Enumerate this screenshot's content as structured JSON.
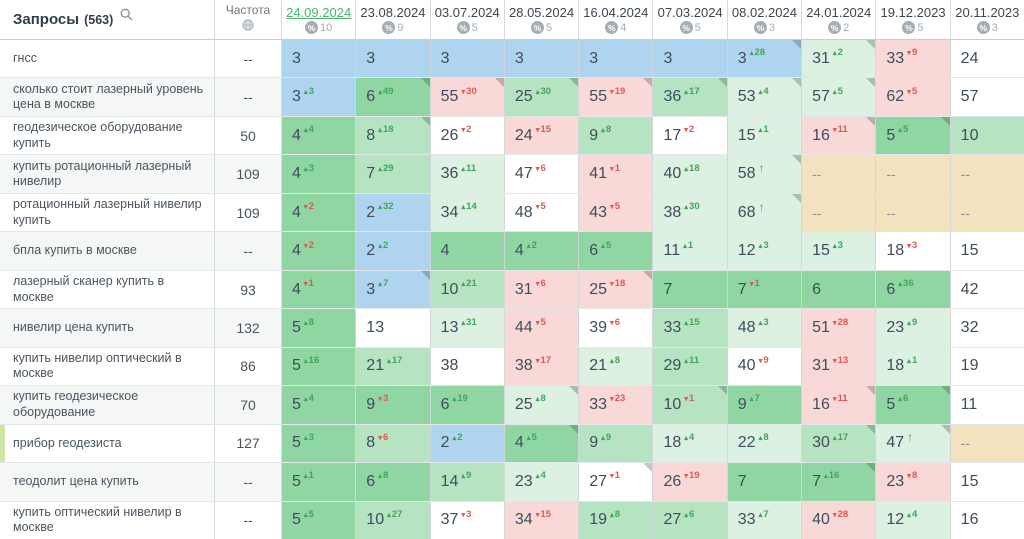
{
  "header": {
    "title": "Запросы",
    "count": "(563)",
    "frequency_label": "Частота",
    "dates": [
      {
        "label": "24.09.2024",
        "count": "10",
        "selected": true
      },
      {
        "label": "23.08.2024",
        "count": "9",
        "selected": false
      },
      {
        "label": "03.07.2024",
        "count": "5",
        "selected": false
      },
      {
        "label": "28.05.2024",
        "count": "5",
        "selected": false
      },
      {
        "label": "16.04.2024",
        "count": "4",
        "selected": false
      },
      {
        "label": "07.03.2024",
        "count": "5",
        "selected": false
      },
      {
        "label": "08.02.2024",
        "count": "3",
        "selected": false
      },
      {
        "label": "24.01.2024",
        "count": "2",
        "selected": false
      },
      {
        "label": "19.12.2023",
        "count": "5",
        "selected": false
      },
      {
        "label": "20.11.2023",
        "count": "3",
        "selected": false
      }
    ]
  },
  "palette": {
    "blue": "#afd4ef",
    "g1": "#8fd6a3",
    "g2": "#b6e4c2",
    "g3": "#dcf1e2",
    "pink": "#f9d9d7",
    "tan": "#f2e2bd",
    "white": "#ffffff",
    "up": "#3fa75c",
    "down": "#e2574f",
    "selected_date": "#4eb56d"
  },
  "rows": [
    {
      "query": "гнсс",
      "frequency": "--",
      "highlight": false,
      "cells": [
        {
          "v": "3",
          "bg": "blue"
        },
        {
          "v": "3",
          "bg": "blue"
        },
        {
          "v": "3",
          "bg": "blue"
        },
        {
          "v": "3",
          "bg": "blue"
        },
        {
          "v": "3",
          "bg": "blue"
        },
        {
          "v": "3",
          "bg": "blue"
        },
        {
          "v": "3",
          "d": "28",
          "dir": "up",
          "bg": "blue",
          "notch": true
        },
        {
          "v": "31",
          "d": "2",
          "dir": "up",
          "bg": "g3",
          "notch": true
        },
        {
          "v": "33",
          "d": "9",
          "dir": "down",
          "bg": "pink"
        },
        {
          "v": "24",
          "bg": "white"
        }
      ]
    },
    {
      "query": "сколько стоит лазерный уровень цена в москве",
      "frequency": "--",
      "highlight": false,
      "cells": [
        {
          "v": "3",
          "d": "3",
          "dir": "up",
          "bg": "blue"
        },
        {
          "v": "6",
          "d": "49",
          "dir": "up",
          "bg": "g1",
          "notch": true
        },
        {
          "v": "55",
          "d": "30",
          "dir": "down",
          "bg": "pink",
          "notch": true
        },
        {
          "v": "25",
          "d": "30",
          "dir": "up",
          "bg": "g2",
          "notch": true
        },
        {
          "v": "55",
          "d": "19",
          "dir": "down",
          "bg": "pink",
          "notch": true
        },
        {
          "v": "36",
          "d": "17",
          "dir": "up",
          "bg": "g2",
          "notch": true
        },
        {
          "v": "53",
          "d": "4",
          "dir": "up",
          "bg": "g3",
          "notch": true
        },
        {
          "v": "57",
          "d": "5",
          "dir": "up",
          "bg": "g3",
          "notch": true
        },
        {
          "v": "62",
          "d": "5",
          "dir": "down",
          "bg": "pink"
        },
        {
          "v": "57",
          "bg": "white"
        }
      ]
    },
    {
      "query": "геодезическое оборудование купить",
      "frequency": "50",
      "highlight": false,
      "cells": [
        {
          "v": "4",
          "d": "4",
          "dir": "up",
          "bg": "g1"
        },
        {
          "v": "8",
          "d": "18",
          "dir": "up",
          "bg": "g2",
          "notch": true
        },
        {
          "v": "26",
          "d": "2",
          "dir": "down",
          "bg": "white"
        },
        {
          "v": "24",
          "d": "15",
          "dir": "down",
          "bg": "pink"
        },
        {
          "v": "9",
          "d": "8",
          "dir": "up",
          "bg": "g2"
        },
        {
          "v": "17",
          "d": "2",
          "dir": "down",
          "bg": "white"
        },
        {
          "v": "15",
          "d": "1",
          "dir": "up",
          "bg": "g3"
        },
        {
          "v": "16",
          "d": "11",
          "dir": "down",
          "bg": "pink",
          "notch": true
        },
        {
          "v": "5",
          "d": "5",
          "dir": "up",
          "bg": "g1",
          "notch": true
        },
        {
          "v": "10",
          "bg": "g2"
        }
      ]
    },
    {
      "query": "купить ротационный лазерный нивелир",
      "frequency": "109",
      "highlight": false,
      "cells": [
        {
          "v": "4",
          "d": "3",
          "dir": "up",
          "bg": "g1"
        },
        {
          "v": "7",
          "d": "29",
          "dir": "up",
          "bg": "g2"
        },
        {
          "v": "36",
          "d": "11",
          "dir": "up",
          "bg": "g3"
        },
        {
          "v": "47",
          "d": "6",
          "dir": "down",
          "bg": "white"
        },
        {
          "v": "41",
          "d": "1",
          "dir": "down",
          "bg": "pink"
        },
        {
          "v": "40",
          "d": "18",
          "dir": "up",
          "bg": "g3"
        },
        {
          "v": "58",
          "dir": "enter",
          "bg": "g3",
          "notch": true
        },
        {
          "v": "--",
          "bg": "tan"
        },
        {
          "v": "--",
          "bg": "tan"
        },
        {
          "v": "--",
          "bg": "tan"
        }
      ]
    },
    {
      "query": "ротационный лазерный нивелир купить",
      "frequency": "109",
      "highlight": false,
      "cells": [
        {
          "v": "4",
          "d": "2",
          "dir": "down",
          "bg": "g1"
        },
        {
          "v": "2",
          "d": "32",
          "dir": "up",
          "bg": "blue"
        },
        {
          "v": "34",
          "d": "14",
          "dir": "up",
          "bg": "g3"
        },
        {
          "v": "48",
          "d": "5",
          "dir": "down",
          "bg": "white"
        },
        {
          "v": "43",
          "d": "5",
          "dir": "down",
          "bg": "pink"
        },
        {
          "v": "38",
          "d": "30",
          "dir": "up",
          "bg": "g3"
        },
        {
          "v": "68",
          "dir": "enter",
          "bg": "g3",
          "notch": true
        },
        {
          "v": "--",
          "bg": "tan"
        },
        {
          "v": "--",
          "bg": "tan"
        },
        {
          "v": "--",
          "bg": "tan"
        }
      ]
    },
    {
      "query": "бпла купить в москве",
      "frequency": "--",
      "highlight": false,
      "cells": [
        {
          "v": "4",
          "d": "2",
          "dir": "down",
          "bg": "g1"
        },
        {
          "v": "2",
          "d": "2",
          "dir": "up",
          "bg": "blue"
        },
        {
          "v": "4",
          "bg": "g1"
        },
        {
          "v": "4",
          "d": "2",
          "dir": "up",
          "bg": "g1"
        },
        {
          "v": "6",
          "d": "5",
          "dir": "up",
          "bg": "g1"
        },
        {
          "v": "11",
          "d": "1",
          "dir": "up",
          "bg": "g3"
        },
        {
          "v": "12",
          "d": "3",
          "dir": "up",
          "bg": "g3"
        },
        {
          "v": "15",
          "d": "3",
          "dir": "up",
          "bg": "g3"
        },
        {
          "v": "18",
          "d": "3",
          "dir": "down",
          "bg": "white"
        },
        {
          "v": "15",
          "bg": "white"
        }
      ]
    },
    {
      "query": "лазерный сканер купить в москве",
      "frequency": "93",
      "highlight": false,
      "cells": [
        {
          "v": "4",
          "d": "1",
          "dir": "down",
          "bg": "g1"
        },
        {
          "v": "3",
          "d": "7",
          "dir": "up",
          "bg": "blue",
          "notch": true
        },
        {
          "v": "10",
          "d": "21",
          "dir": "up",
          "bg": "g2"
        },
        {
          "v": "31",
          "d": "6",
          "dir": "down",
          "bg": "pink"
        },
        {
          "v": "25",
          "d": "18",
          "dir": "down",
          "bg": "pink",
          "notch": true
        },
        {
          "v": "7",
          "bg": "g1"
        },
        {
          "v": "7",
          "d": "1",
          "dir": "down",
          "bg": "g1"
        },
        {
          "v": "6",
          "bg": "g1"
        },
        {
          "v": "6",
          "d": "36",
          "dir": "up",
          "bg": "g1"
        },
        {
          "v": "42",
          "bg": "white"
        }
      ]
    },
    {
      "query": "нивелир цена купить",
      "frequency": "132",
      "highlight": false,
      "cells": [
        {
          "v": "5",
          "d": "8",
          "dir": "up",
          "bg": "g1"
        },
        {
          "v": "13",
          "bg": "white"
        },
        {
          "v": "13",
          "d": "31",
          "dir": "up",
          "bg": "g3"
        },
        {
          "v": "44",
          "d": "5",
          "dir": "down",
          "bg": "pink"
        },
        {
          "v": "39",
          "d": "6",
          "dir": "down",
          "bg": "white"
        },
        {
          "v": "33",
          "d": "15",
          "dir": "up",
          "bg": "g2"
        },
        {
          "v": "48",
          "d": "3",
          "dir": "up",
          "bg": "g3"
        },
        {
          "v": "51",
          "d": "28",
          "dir": "down",
          "bg": "pink"
        },
        {
          "v": "23",
          "d": "9",
          "dir": "up",
          "bg": "g3"
        },
        {
          "v": "32",
          "bg": "white"
        }
      ]
    },
    {
      "query": "купить нивелир оптический в москве",
      "frequency": "86",
      "highlight": false,
      "cells": [
        {
          "v": "5",
          "d": "16",
          "dir": "up",
          "bg": "g1"
        },
        {
          "v": "21",
          "d": "17",
          "dir": "up",
          "bg": "g2"
        },
        {
          "v": "38",
          "bg": "white"
        },
        {
          "v": "38",
          "d": "17",
          "dir": "down",
          "bg": "pink"
        },
        {
          "v": "21",
          "d": "8",
          "dir": "up",
          "bg": "g3"
        },
        {
          "v": "29",
          "d": "11",
          "dir": "up",
          "bg": "g2"
        },
        {
          "v": "40",
          "d": "9",
          "dir": "down",
          "bg": "white"
        },
        {
          "v": "31",
          "d": "13",
          "dir": "down",
          "bg": "pink"
        },
        {
          "v": "18",
          "d": "1",
          "dir": "up",
          "bg": "g3"
        },
        {
          "v": "19",
          "bg": "white"
        }
      ]
    },
    {
      "query": "купить геодезическое оборудование",
      "frequency": "70",
      "highlight": false,
      "cells": [
        {
          "v": "5",
          "d": "4",
          "dir": "up",
          "bg": "g1"
        },
        {
          "v": "9",
          "d": "3",
          "dir": "down",
          "bg": "g1"
        },
        {
          "v": "6",
          "d": "19",
          "dir": "up",
          "bg": "g1"
        },
        {
          "v": "25",
          "d": "8",
          "dir": "up",
          "bg": "g3",
          "notch": true
        },
        {
          "v": "33",
          "d": "23",
          "dir": "down",
          "bg": "pink"
        },
        {
          "v": "10",
          "d": "1",
          "dir": "down",
          "bg": "g2",
          "notch": true
        },
        {
          "v": "9",
          "d": "7",
          "dir": "up",
          "bg": "g1"
        },
        {
          "v": "16",
          "d": "11",
          "dir": "down",
          "bg": "pink",
          "notch": true
        },
        {
          "v": "5",
          "d": "6",
          "dir": "up",
          "bg": "g1",
          "notch": true
        },
        {
          "v": "11",
          "bg": "white"
        }
      ]
    },
    {
      "query": "прибор геодезиста",
      "frequency": "127",
      "highlight": true,
      "cells": [
        {
          "v": "5",
          "d": "3",
          "dir": "up",
          "bg": "g1"
        },
        {
          "v": "8",
          "d": "6",
          "dir": "down",
          "bg": "g2"
        },
        {
          "v": "2",
          "d": "2",
          "dir": "up",
          "bg": "blue"
        },
        {
          "v": "4",
          "d": "5",
          "dir": "up",
          "bg": "g1",
          "notch": true
        },
        {
          "v": "9",
          "d": "9",
          "dir": "up",
          "bg": "g2"
        },
        {
          "v": "18",
          "d": "4",
          "dir": "up",
          "bg": "g3"
        },
        {
          "v": "22",
          "d": "8",
          "dir": "up",
          "bg": "g3"
        },
        {
          "v": "30",
          "d": "17",
          "dir": "up",
          "bg": "g2",
          "notch": true
        },
        {
          "v": "47",
          "dir": "enter",
          "bg": "g3",
          "notch": true
        },
        {
          "v": "--",
          "bg": "tan"
        }
      ]
    },
    {
      "query": "теодолит цена купить",
      "frequency": "--",
      "highlight": false,
      "cells": [
        {
          "v": "5",
          "d": "1",
          "dir": "up",
          "bg": "g1"
        },
        {
          "v": "6",
          "d": "8",
          "dir": "up",
          "bg": "g1"
        },
        {
          "v": "14",
          "d": "9",
          "dir": "up",
          "bg": "g2"
        },
        {
          "v": "23",
          "d": "4",
          "dir": "up",
          "bg": "g3"
        },
        {
          "v": "27",
          "d": "1",
          "dir": "down",
          "bg": "white",
          "notch": true
        },
        {
          "v": "26",
          "d": "19",
          "dir": "down",
          "bg": "pink"
        },
        {
          "v": "7",
          "bg": "g1"
        },
        {
          "v": "7",
          "d": "16",
          "dir": "up",
          "bg": "g1",
          "notch": true
        },
        {
          "v": "23",
          "d": "8",
          "dir": "down",
          "bg": "pink"
        },
        {
          "v": "15",
          "bg": "white"
        }
      ]
    },
    {
      "query": "купить оптический нивелир в москве",
      "frequency": "--",
      "highlight": false,
      "cells": [
        {
          "v": "5",
          "d": "5",
          "dir": "up",
          "bg": "g1"
        },
        {
          "v": "10",
          "d": "27",
          "dir": "up",
          "bg": "g2"
        },
        {
          "v": "37",
          "d": "3",
          "dir": "down",
          "bg": "white"
        },
        {
          "v": "34",
          "d": "15",
          "dir": "down",
          "bg": "pink"
        },
        {
          "v": "19",
          "d": "8",
          "dir": "up",
          "bg": "g2"
        },
        {
          "v": "27",
          "d": "6",
          "dir": "up",
          "bg": "g2"
        },
        {
          "v": "33",
          "d": "7",
          "dir": "up",
          "bg": "g3"
        },
        {
          "v": "40",
          "d": "28",
          "dir": "down",
          "bg": "pink"
        },
        {
          "v": "12",
          "d": "4",
          "dir": "up",
          "bg": "g3"
        },
        {
          "v": "16",
          "bg": "white"
        }
      ]
    }
  ]
}
